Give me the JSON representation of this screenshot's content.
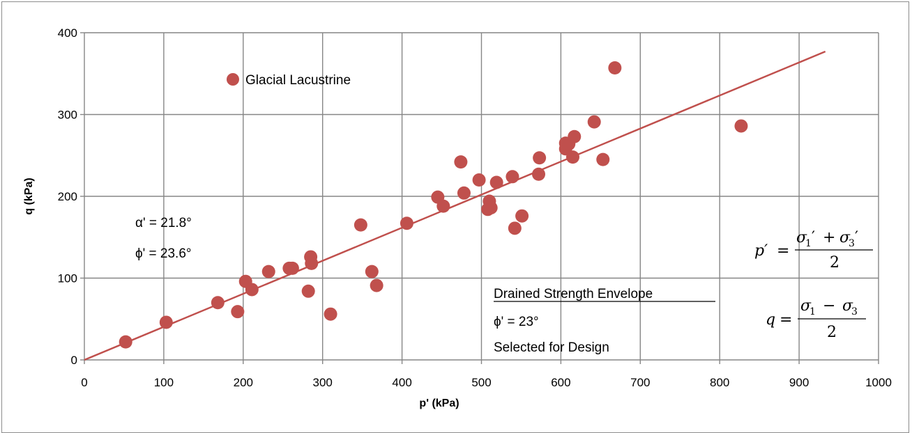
{
  "colors": {
    "series": "#c0504d",
    "grid": "#868686",
    "axis": "#868686"
  },
  "chart_data": {
    "type": "scatter",
    "xlabel": "p' (kPa)",
    "ylabel": "q (kPa)",
    "xlim": [
      0,
      1000
    ],
    "ylim": [
      0,
      400
    ],
    "x_ticks": [
      0,
      100,
      200,
      300,
      400,
      500,
      600,
      700,
      800,
      900,
      1000
    ],
    "y_ticks": [
      0,
      100,
      200,
      300,
      400
    ],
    "grid": true,
    "legend_position": "top-left",
    "series": [
      {
        "name": "Glacial Lacustrine",
        "points": [
          [
            52,
            22
          ],
          [
            103,
            46
          ],
          [
            168,
            70
          ],
          [
            193,
            59
          ],
          [
            203,
            96
          ],
          [
            211,
            86
          ],
          [
            232,
            108
          ],
          [
            258,
            112
          ],
          [
            262,
            112
          ],
          [
            282,
            84
          ],
          [
            285,
            126
          ],
          [
            286,
            118
          ],
          [
            310,
            56
          ],
          [
            348,
            165
          ],
          [
            362,
            108
          ],
          [
            368,
            91
          ],
          [
            406,
            167
          ],
          [
            445,
            199
          ],
          [
            452,
            188
          ],
          [
            474,
            242
          ],
          [
            478,
            204
          ],
          [
            497,
            220
          ],
          [
            508,
            184
          ],
          [
            510,
            194
          ],
          [
            512,
            186
          ],
          [
            519,
            217
          ],
          [
            539,
            224
          ],
          [
            542,
            161
          ],
          [
            551,
            176
          ],
          [
            572,
            227
          ],
          [
            573,
            247
          ],
          [
            606,
            258
          ],
          [
            606,
            265
          ],
          [
            610,
            264
          ],
          [
            615,
            248
          ],
          [
            617,
            273
          ],
          [
            642,
            291
          ],
          [
            653,
            245
          ],
          [
            668,
            357
          ],
          [
            827,
            286
          ]
        ]
      }
    ],
    "trendline": {
      "x": [
        0,
        933
      ],
      "y": [
        0,
        377
      ]
    },
    "annotations": {
      "alpha": "α' = 21.8°",
      "phi": "ϕ' = 23.6°",
      "envelope_title": "Drained Strength Envelope",
      "envelope_phi": "ϕ' = 23°",
      "envelope_note": "Selected for Design"
    }
  },
  "formulas": {
    "p_lhs": "p′",
    "q_lhs": "q",
    "equals": "=",
    "sigma": "σ",
    "sub1": "1",
    "sub3": "3",
    "prime": "′",
    "plus": "+",
    "minus": "−",
    "den": "2"
  }
}
